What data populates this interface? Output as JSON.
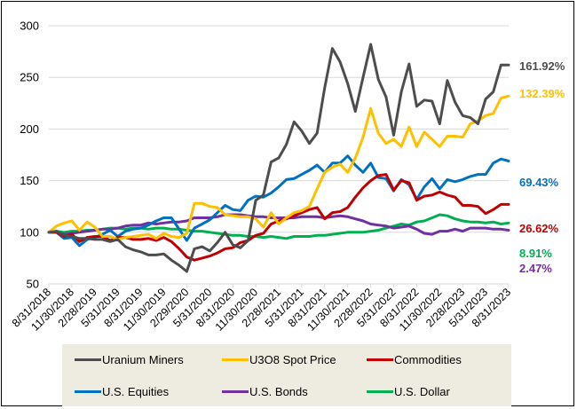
{
  "chart_data": {
    "type": "line",
    "title": "",
    "xlabel": "",
    "ylabel": "",
    "ylim": [
      50,
      300
    ],
    "yticks": [
      50,
      100,
      150,
      200,
      250,
      300
    ],
    "grid": true,
    "legend_position": "bottom",
    "x_tick_labels": [
      "8/31/2018",
      "11/30/2018",
      "2/28/2019",
      "5/31/2019",
      "8/31/2019",
      "11/30/2019",
      "2/29/2020",
      "5/31/2020",
      "8/31/2020",
      "11/30/2020",
      "2/28/2021",
      "5/31/2021",
      "8/31/2021",
      "11/30/2021",
      "2/28/2022",
      "5/31/2022",
      "8/31/2022",
      "11/30/2022",
      "2/28/2023",
      "5/31/2023",
      "8/31/2023"
    ],
    "x_start": "8/31/2018",
    "x_end": "8/31/2023",
    "frequency": "monthly",
    "series": [
      {
        "name": "Uranium Miners",
        "color": "#4d4d4d",
        "end_label": "161.92%",
        "values": [
          100,
          101,
          97,
          96,
          94,
          94,
          93,
          93,
          91,
          93,
          86,
          83,
          81,
          78,
          78,
          79,
          73,
          68,
          62,
          84,
          86,
          82,
          90,
          100,
          88,
          85,
          92,
          131,
          136,
          168,
          172,
          185,
          207,
          198,
          186,
          196,
          240,
          278,
          265,
          244,
          217,
          250,
          282,
          248,
          231,
          194,
          236,
          263,
          222,
          228,
          227,
          205,
          247,
          226,
          213,
          211,
          205,
          229,
          236,
          262,
          262
        ]
      },
      {
        "name": "U3O8 Spot Price",
        "color": "#ffc000",
        "end_label": "132.39%",
        "values": [
          100,
          106,
          109,
          111,
          102,
          110,
          105,
          96,
          96,
          93,
          95,
          96,
          97,
          98,
          94,
          99,
          96,
          95,
          99,
          128,
          128,
          125,
          124,
          117,
          116,
          115,
          115,
          113,
          105,
          119,
          108,
          114,
          119,
          121,
          125,
          142,
          158,
          163,
          166,
          158,
          172,
          192,
          220,
          196,
          186,
          190,
          183,
          202,
          183,
          197,
          190,
          183,
          193,
          193,
          192,
          205,
          208,
          213,
          215,
          230,
          232
        ]
      },
      {
        "name": "Commodities",
        "color": "#c00000",
        "end_label": "26.62%",
        "values": [
          100,
          100,
          96,
          98,
          91,
          95,
          96,
          96,
          92,
          95,
          95,
          93,
          93,
          94,
          92,
          95,
          91,
          84,
          76,
          73,
          75,
          77,
          80,
          84,
          85,
          90,
          92,
          97,
          99,
          108,
          111,
          113,
          116,
          119,
          122,
          124,
          113,
          119,
          120,
          124,
          134,
          143,
          150,
          155,
          156,
          141,
          150,
          148,
          131,
          135,
          136,
          139,
          136,
          134,
          126,
          126,
          125,
          118,
          122,
          127,
          127
        ]
      },
      {
        "name": "U.S. Equities",
        "color": "#0070c0",
        "end_label": "69.43%",
        "values": [
          100,
          100,
          94,
          95,
          87,
          93,
          95,
          98,
          102,
          96,
          101,
          103,
          104,
          107,
          111,
          114,
          114,
          103,
          92,
          104,
          108,
          112,
          119,
          126,
          122,
          121,
          131,
          135,
          134,
          138,
          144,
          151,
          152,
          156,
          160,
          165,
          158,
          167,
          167,
          174,
          165,
          158,
          167,
          153,
          152,
          140,
          151,
          146,
          132,
          144,
          152,
          142,
          151,
          149,
          151,
          154,
          156,
          156,
          167,
          171,
          169
        ]
      },
      {
        "name": "U.S. Bonds",
        "color": "#7030a0",
        "end_label": "2.47%",
        "values": [
          100,
          100,
          98,
          99,
          100,
          101,
          102,
          103,
          103,
          104,
          106,
          107,
          107,
          109,
          108,
          109,
          110,
          110,
          111,
          114,
          114,
          114,
          115,
          117,
          117,
          117,
          116,
          115,
          115,
          114,
          114,
          114,
          114,
          115,
          115,
          115,
          114,
          115,
          116,
          115,
          113,
          111,
          108,
          107,
          106,
          104,
          105,
          106,
          103,
          99,
          98,
          101,
          101,
          103,
          101,
          104,
          104,
          104,
          103,
          103,
          102
        ]
      },
      {
        "name": "U.S. Dollar",
        "color": "#00b050",
        "end_label": "8.91%",
        "values": [
          100,
          101,
          100,
          101,
          101,
          102,
          102,
          103,
          104,
          104,
          103,
          104,
          104,
          103,
          104,
          104,
          103,
          103,
          102,
          101,
          101,
          100,
          99,
          98,
          97,
          97,
          96,
          96,
          95,
          96,
          95,
          94,
          96,
          96,
          96,
          97,
          97,
          98,
          99,
          100,
          100,
          100,
          101,
          102,
          104,
          106,
          108,
          107,
          110,
          111,
          114,
          117,
          116,
          113,
          111,
          110,
          110,
          109,
          110,
          108,
          109
        ]
      }
    ]
  }
}
